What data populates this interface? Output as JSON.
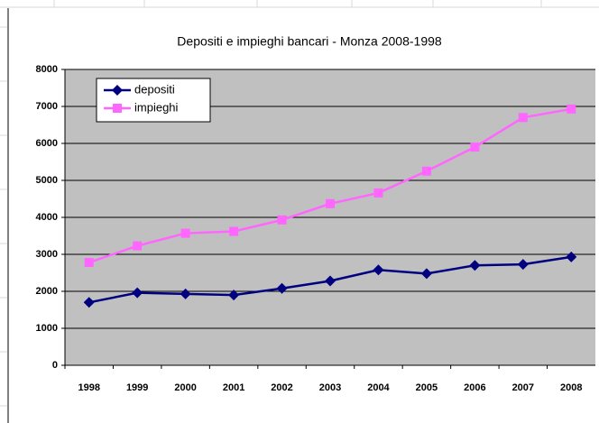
{
  "chart_data": {
    "type": "line",
    "title": "Depositi e impieghi bancari - Monza 2008-1998",
    "categories": [
      "1998",
      "1999",
      "2000",
      "2001",
      "2002",
      "2003",
      "2004",
      "2005",
      "2006",
      "2007",
      "2008"
    ],
    "series": [
      {
        "name": "depositi",
        "color": "#000080",
        "marker": "diamond",
        "values": [
          1700,
          1960,
          1930,
          1900,
          2080,
          2280,
          2580,
          2480,
          2700,
          2730,
          2930
        ]
      },
      {
        "name": "impieghi",
        "color": "#ff66ff",
        "marker": "square",
        "values": [
          2780,
          3230,
          3570,
          3620,
          3930,
          4370,
          4660,
          5250,
          5900,
          6700,
          6930
        ]
      }
    ],
    "ylim": [
      0,
      8000
    ],
    "yticks": [
      0,
      1000,
      2000,
      3000,
      4000,
      5000,
      6000,
      7000,
      8000
    ],
    "grid": true,
    "legend": "top-left"
  }
}
